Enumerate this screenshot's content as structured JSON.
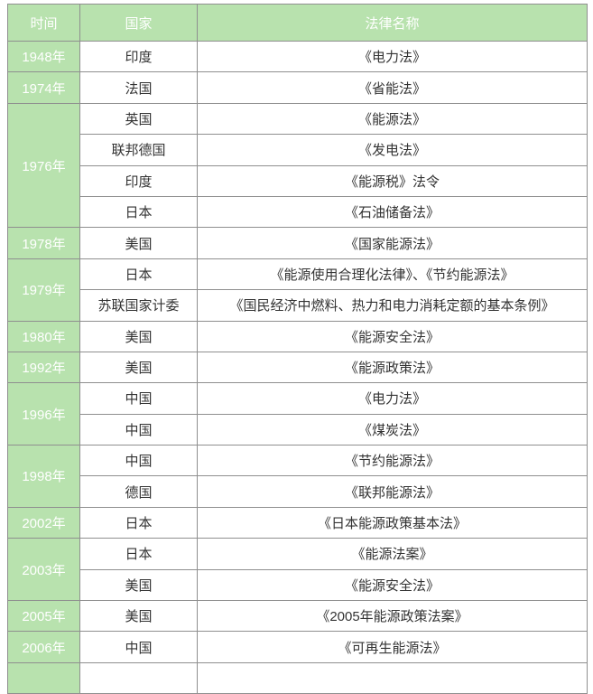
{
  "colors": {
    "header_bg": "#b8e2ae",
    "year_cell_bg": "#b8e2ae",
    "border": "#8f8f8f",
    "header_text": "#ffffff",
    "body_text": "#333333"
  },
  "table": {
    "columns": [
      {
        "key": "year",
        "label": "时间"
      },
      {
        "key": "country",
        "label": "国家"
      },
      {
        "key": "law",
        "label": "法律名称"
      }
    ],
    "groups": [
      {
        "year": "1948年",
        "entries": [
          {
            "country": "印度",
            "law": "《电力法》"
          }
        ]
      },
      {
        "year": "1974年",
        "entries": [
          {
            "country": "法国",
            "law": "《省能法》"
          }
        ]
      },
      {
        "year": "1976年",
        "entries": [
          {
            "country": "英国",
            "law": "《能源法》"
          },
          {
            "country": "联邦德国",
            "law": "《发电法》"
          },
          {
            "country": "印度",
            "law": "《能源税》法令"
          },
          {
            "country": "日本",
            "law": "《石油储备法》"
          }
        ]
      },
      {
        "year": "1978年",
        "entries": [
          {
            "country": "美国",
            "law": "《国家能源法》"
          }
        ]
      },
      {
        "year": "1979年",
        "entries": [
          {
            "country": "日本",
            "law": "《能源使用合理化法律》、《节约能源法》"
          },
          {
            "country": "苏联国家计委",
            "law": "《国民经济中燃料、热力和电力消耗定额的基本条例》"
          }
        ]
      },
      {
        "year": "1980年",
        "entries": [
          {
            "country": "美国",
            "law": "《能源安全法》"
          }
        ]
      },
      {
        "year": "1992年",
        "entries": [
          {
            "country": "美国",
            "law": "《能源政策法》"
          }
        ]
      },
      {
        "year": "1996年",
        "entries": [
          {
            "country": "中国",
            "law": "《电力法》"
          },
          {
            "country": "中国",
            "law": "《煤炭法》"
          }
        ]
      },
      {
        "year": "1998年",
        "entries": [
          {
            "country": "中国",
            "law": "《节约能源法》"
          },
          {
            "country": "德国",
            "law": "《联邦能源法》"
          }
        ]
      },
      {
        "year": "2002年",
        "entries": [
          {
            "country": "日本",
            "law": "《日本能源政策基本法》"
          }
        ]
      },
      {
        "year": "2003年",
        "entries": [
          {
            "country": "日本",
            "law": "《能源法案》"
          },
          {
            "country": "美国",
            "law": "《能源安全法》"
          }
        ]
      },
      {
        "year": "2005年",
        "entries": [
          {
            "country": "美国",
            "law": "《2005年能源政策法案》"
          }
        ]
      },
      {
        "year": "2006年",
        "entries": [
          {
            "country": "中国",
            "law": "《可再生能源法》"
          }
        ]
      }
    ],
    "partial_row": {
      "visible": true,
      "year": "",
      "country": "",
      "law": ""
    }
  }
}
